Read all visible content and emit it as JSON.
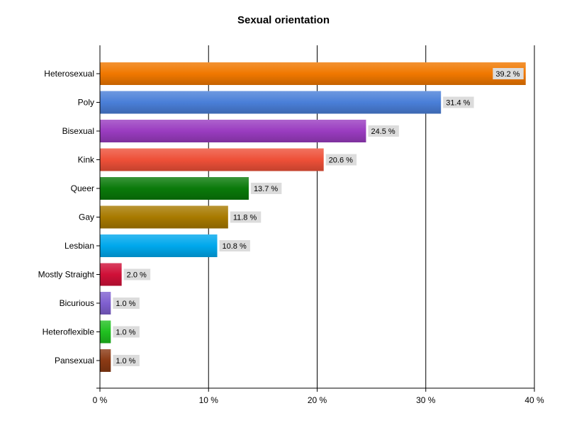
{
  "chart_data": {
    "type": "bar",
    "orientation": "horizontal",
    "title": "Sexual orientation",
    "xlabel": "",
    "ylabel": "",
    "xlim": [
      0,
      40
    ],
    "x_ticks": [
      0,
      10,
      20,
      30,
      40
    ],
    "x_tick_labels": [
      "0 %",
      "10 %",
      "20 %",
      "30 %",
      "40 %"
    ],
    "grid": true,
    "legend": "none",
    "categories": [
      "Heterosexual",
      "Poly",
      "Bisexual",
      "Kink",
      "Queer",
      "Gay",
      "Lesbian",
      "Mostly Straight",
      "Bicurious",
      "Heteroflexible",
      "Pansexual"
    ],
    "values": [
      39.2,
      31.4,
      24.5,
      20.6,
      13.7,
      11.8,
      10.8,
      2.0,
      1.0,
      1.0,
      1.0
    ],
    "value_labels": [
      "39.2 %",
      "31.4 %",
      "24.5 %",
      "20.6 %",
      "13.7 %",
      "11.8 %",
      "10.8 %",
      "2.0 %",
      "1.0 %",
      "1.0 %",
      "1.0 %"
    ],
    "colors": [
      "#F07800",
      "#4A7FD8",
      "#9A3CC0",
      "#EE5038",
      "#0A7A0A",
      "#A87A00",
      "#00A8EC",
      "#D01038",
      "#8060D0",
      "#20C020",
      "#8B3A14"
    ]
  }
}
